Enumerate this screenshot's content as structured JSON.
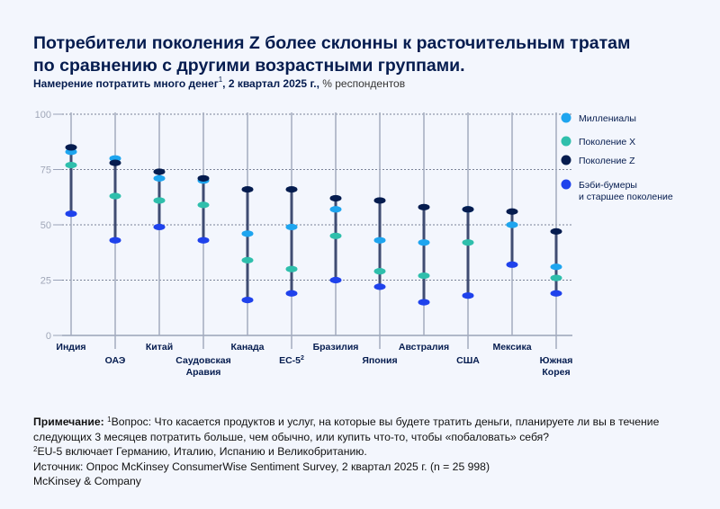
{
  "header": {
    "title_line1": "Потребители поколения Z более склонны к расточительным тратам",
    "title_line2": "по сравнению с другими возрастными группами.",
    "subtitle_main": "Намерение потратить много денег",
    "subtitle_sup": "1",
    "subtitle_period": ", 2 квартал 2025 г.,",
    "subtitle_unit": " % респондентов"
  },
  "chart_data": {
    "type": "scatter",
    "title": "Потребители поколения Z более склонны к расточительным тратам по сравнению с другими возрастными группами.",
    "ylabel": "% респондентов",
    "ylim": [
      0,
      100
    ],
    "yticks": [
      "0",
      "25",
      "50",
      "75",
      "100"
    ],
    "grid": true,
    "legend_position": "right",
    "categories": [
      "Индия",
      "ОАЭ",
      "Китай",
      "Саудовская\nАравия",
      "Канада",
      "ЕС-5",
      "Бразилия",
      "Япония",
      "Австралия",
      "США",
      "Мексика",
      "Южная\nКорея"
    ],
    "category_sups": [
      "",
      "",
      "",
      "",
      "",
      "2",
      "",
      "",
      "",
      "",
      "",
      ""
    ],
    "series": [
      {
        "name": "Миллениалы",
        "color": "#1ea5ef",
        "values": [
          83,
          80,
          71,
          70,
          46,
          49,
          57,
          43,
          42,
          57,
          50,
          31
        ]
      },
      {
        "name": "Поколение X",
        "color": "#2fbfac",
        "values": [
          77,
          63,
          61,
          59,
          34,
          30,
          45,
          29,
          27,
          42,
          50,
          26
        ]
      },
      {
        "name": "Поколение Z",
        "color": "#051c4f",
        "values": [
          85,
          78,
          74,
          71,
          66,
          66,
          62,
          61,
          58,
          57,
          56,
          47
        ]
      },
      {
        "name": "Бэби-бумеры\nи старшее поколение",
        "color": "#1f42ec",
        "values": [
          55,
          43,
          49,
          43,
          16,
          19,
          25,
          22,
          15,
          18,
          32,
          19
        ]
      }
    ]
  },
  "notes": {
    "note_label": "Примечание:",
    "note1_sup": "1",
    "note1_text": "Вопрос: Что касается продуктов и услуг, на которые вы будете тратить деньги, планируете ли вы в течение следующих 3 месяцев потратить больше, чем обычно, или купить что-то, чтобы «побаловать» себя?",
    "note2_sup": "2",
    "note2_text": "EU-5 включает Германию, Италию, Испанию и Великобританию.",
    "source": "Источник: Опрос McKinsey ConsumerWise Sentiment Survey, 2 квартал 2025 г. (n = 25 998)",
    "brand": "McKinsey & Company"
  }
}
